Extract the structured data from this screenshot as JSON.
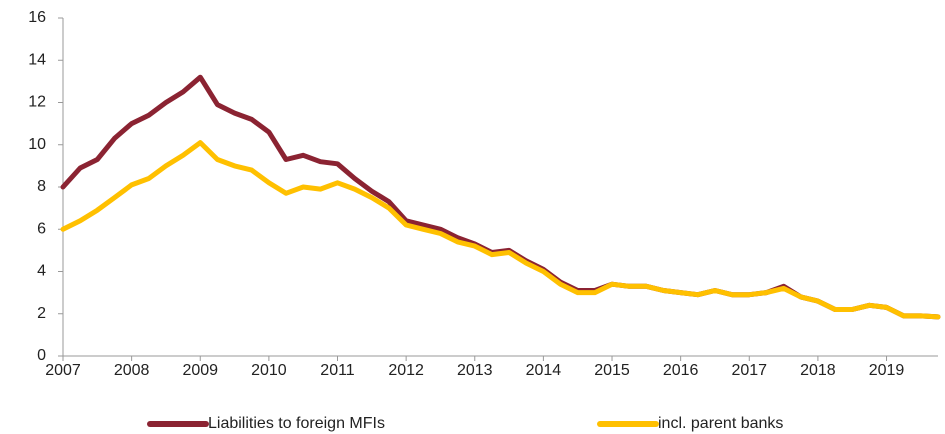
{
  "chart_data": {
    "type": "line",
    "x": [
      2007,
      2007.25,
      2007.5,
      2007.75,
      2008,
      2008.25,
      2008.5,
      2008.75,
      2009,
      2009.25,
      2009.5,
      2009.75,
      2010,
      2010.25,
      2010.5,
      2010.75,
      2011,
      2011.25,
      2011.5,
      2011.75,
      2012,
      2012.25,
      2012.5,
      2012.75,
      2013,
      2013.25,
      2013.5,
      2013.75,
      2014,
      2014.25,
      2014.5,
      2014.75,
      2015,
      2015.25,
      2015.5,
      2015.75,
      2016,
      2016.25,
      2016.5,
      2016.75,
      2017,
      2017.25,
      2017.5,
      2017.75,
      2018,
      2018.25,
      2018.5,
      2018.75,
      2019,
      2019.25,
      2019.5,
      2019.75
    ],
    "series": [
      {
        "name": "Liabilities to foreign MFIs",
        "color": "#8b2332",
        "values": [
          8.0,
          8.9,
          9.3,
          10.3,
          11.0,
          11.4,
          12.0,
          12.5,
          13.2,
          11.9,
          11.5,
          11.2,
          10.6,
          9.3,
          9.5,
          9.2,
          9.1,
          8.4,
          7.8,
          7.3,
          6.4,
          6.2,
          6.0,
          5.6,
          5.3,
          4.9,
          5.0,
          4.5,
          4.1,
          3.5,
          3.1,
          3.1,
          3.4,
          3.3,
          3.3,
          3.1,
          3.0,
          2.9,
          3.1,
          2.9,
          2.9,
          3.0,
          3.3,
          2.8,
          2.6,
          2.2,
          2.2,
          2.4,
          2.3,
          1.9,
          1.9,
          1.85
        ]
      },
      {
        "name": "incl. parent banks",
        "color": "#ffc000",
        "values": [
          6.0,
          6.4,
          6.9,
          7.5,
          8.1,
          8.4,
          9.0,
          9.5,
          10.1,
          9.3,
          9.0,
          8.8,
          8.2,
          7.7,
          8.0,
          7.9,
          8.2,
          7.9,
          7.5,
          7.0,
          6.2,
          6.0,
          5.8,
          5.4,
          5.2,
          4.8,
          4.9,
          4.4,
          4.0,
          3.4,
          3.0,
          3.0,
          3.4,
          3.3,
          3.3,
          3.1,
          3.0,
          2.9,
          3.1,
          2.9,
          2.9,
          3.0,
          3.2,
          2.8,
          2.6,
          2.2,
          2.2,
          2.4,
          2.3,
          1.9,
          1.9,
          1.85
        ]
      }
    ],
    "xlim": [
      2007,
      2019.75
    ],
    "xticks": [
      2007,
      2008,
      2009,
      2010,
      2011,
      2012,
      2013,
      2014,
      2015,
      2016,
      2017,
      2018,
      2019
    ],
    "ylim": [
      0,
      16
    ],
    "yticks": [
      0,
      2,
      4,
      6,
      8,
      10,
      12,
      14,
      16
    ]
  }
}
